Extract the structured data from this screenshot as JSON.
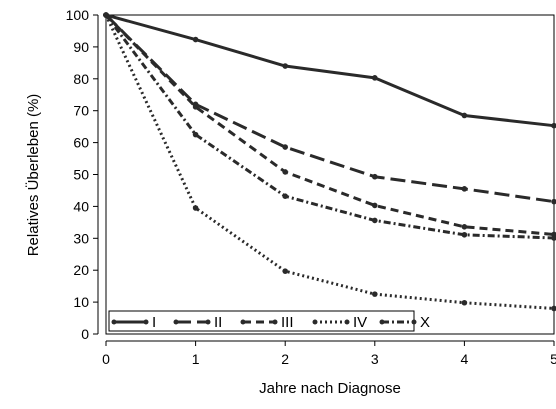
{
  "chart_data": {
    "type": "line",
    "title": "",
    "xlabel": "Jahre nach Diagnose",
    "ylabel": "Relatives Überleben (%)",
    "x": [
      0,
      1,
      2,
      3,
      4,
      5
    ],
    "xlim": [
      0,
      5
    ],
    "ylim": [
      0,
      100
    ],
    "x_ticks": [
      "0",
      "1",
      "2",
      "3",
      "4",
      "5"
    ],
    "y_ticks": [
      "0",
      "10",
      "20",
      "30",
      "40",
      "50",
      "60",
      "70",
      "80",
      "90",
      "100"
    ],
    "grid": false,
    "legend_position": "bottom-left",
    "line_color": "#2a2a2a",
    "series": [
      {
        "name": "I",
        "dash": "solid",
        "values": [
          100,
          92.3,
          84.0,
          80.3,
          68.5,
          65.3
        ]
      },
      {
        "name": "II",
        "dash": "long-dash",
        "values": [
          100,
          72.0,
          58.6,
          49.3,
          45.5,
          41.5
        ]
      },
      {
        "name": "III",
        "dash": "medium-dash",
        "values": [
          100,
          71.2,
          50.8,
          40.3,
          33.6,
          31.2
        ]
      },
      {
        "name": "IV",
        "dash": "dot",
        "values": [
          100,
          39.5,
          19.7,
          12.5,
          9.8,
          8.0
        ]
      },
      {
        "name": "X",
        "dash": "dash-dot",
        "values": [
          100,
          62.5,
          43.2,
          35.6,
          31.1,
          30.1
        ]
      }
    ]
  }
}
